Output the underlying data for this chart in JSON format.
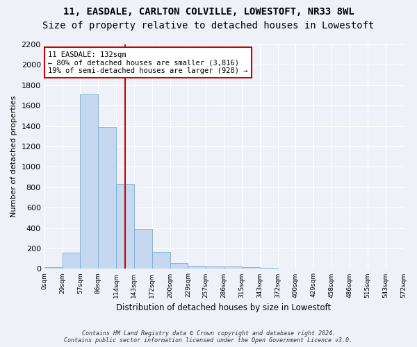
{
  "title1": "11, EASDALE, CARLTON COLVILLE, LOWESTOFT, NR33 8WL",
  "title2": "Size of property relative to detached houses in Lowestoft",
  "xlabel": "Distribution of detached houses by size in Lowestoft",
  "ylabel": "Number of detached properties",
  "bar_values": [
    15,
    160,
    1710,
    1390,
    830,
    390,
    165,
    60,
    30,
    20,
    20,
    15,
    10,
    5,
    5,
    5,
    5,
    5,
    5,
    5
  ],
  "bar_labels": [
    "0sqm",
    "29sqm",
    "57sqm",
    "86sqm",
    "114sqm",
    "143sqm",
    "172sqm",
    "200sqm",
    "229sqm",
    "257sqm",
    "286sqm",
    "315sqm",
    "343sqm",
    "372sqm",
    "400sqm",
    "429sqm",
    "458sqm",
    "486sqm",
    "515sqm",
    "543sqm",
    "572sqm"
  ],
  "bar_color": "#c5d8f0",
  "bar_edge_color": "#7aadd4",
  "vline_x": 4.5,
  "vline_color": "#cc0000",
  "annotation_text": "11 EASDALE: 132sqm\n← 80% of detached houses are smaller (3,816)\n19% of semi-detached houses are larger (928) →",
  "annotation_box_color": "#ffffff",
  "annotation_box_edge": "#cc0000",
  "ylim": [
    0,
    2200
  ],
  "yticks": [
    0,
    200,
    400,
    600,
    800,
    1000,
    1200,
    1400,
    1600,
    1800,
    2000,
    2200
  ],
  "footnote1": "Contains HM Land Registry data © Crown copyright and database right 2024.",
  "footnote2": "Contains public sector information licensed under the Open Government Licence v3.0.",
  "bg_color": "#eef2f8",
  "grid_color": "#ffffff",
  "title1_fontsize": 10,
  "title2_fontsize": 10
}
